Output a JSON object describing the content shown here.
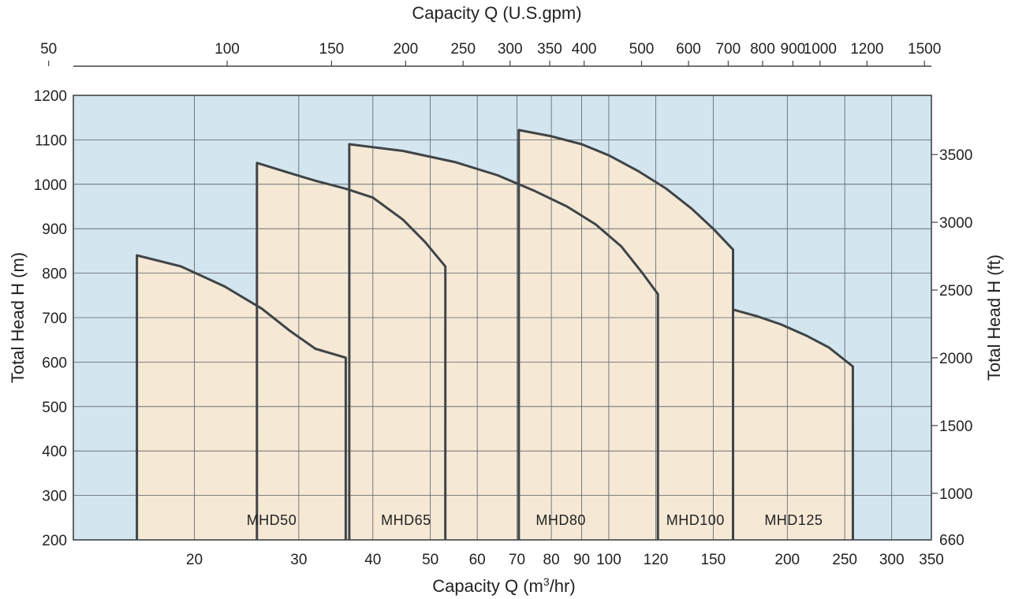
{
  "chart_data": {
    "type": "area",
    "plot_background": "#d3e5ee",
    "region_fill": "#f5e8d5",
    "outline_color": "#3f4447",
    "grid_color": "#5a6066",
    "xscale": "log",
    "xlim": [
      12.5,
      350
    ],
    "ylim": [
      200,
      1200
    ],
    "xlabel": "Capacity  Q (m³/hr)",
    "ylabel": "Total Head  H (m)",
    "x2label": "Capacity  Q (U.S.gpm)",
    "y2label": "Total Head  H (ft)",
    "x_ticks": [
      20,
      30,
      40,
      50,
      60,
      70,
      80,
      90,
      100,
      120,
      150,
      200,
      250,
      300,
      350
    ],
    "y_ticks": [
      200,
      300,
      400,
      500,
      600,
      700,
      800,
      900,
      1000,
      1100,
      1200
    ],
    "x2_ticks": [
      50,
      100,
      150,
      200,
      250,
      300,
      350,
      400,
      500,
      600,
      700,
      800,
      900,
      1000,
      1200,
      1500
    ],
    "y2_ticks": [
      660,
      1000,
      1500,
      2000,
      2500,
      3000,
      3500
    ],
    "series": [
      {
        "name": "MHD50",
        "x_label_at": 27,
        "head_curve": [
          [
            16,
            840
          ],
          [
            19,
            815
          ],
          [
            22.5,
            770
          ],
          [
            26,
            720
          ],
          [
            29,
            670
          ],
          [
            32,
            630
          ],
          [
            36,
            610
          ]
        ]
      },
      {
        "name": "MHD65",
        "x_label_at": 45.5,
        "head_curve": [
          [
            25.5,
            1048
          ],
          [
            29,
            1025
          ],
          [
            32,
            1008
          ],
          [
            36,
            990
          ],
          [
            40,
            970
          ],
          [
            45,
            920
          ],
          [
            49,
            870
          ],
          [
            53,
            815
          ]
        ]
      },
      {
        "name": "MHD80",
        "x_label_at": 83,
        "head_curve": [
          [
            36.5,
            1090
          ],
          [
            45,
            1075
          ],
          [
            55,
            1050
          ],
          [
            65,
            1020
          ],
          [
            75,
            985
          ],
          [
            85,
            950
          ],
          [
            95,
            910
          ],
          [
            105,
            860
          ],
          [
            114,
            800
          ],
          [
            121,
            753
          ]
        ]
      },
      {
        "name": "MHD100",
        "x_label_at": 140,
        "head_curve": [
          [
            70.5,
            1122
          ],
          [
            80,
            1108
          ],
          [
            90,
            1090
          ],
          [
            100,
            1065
          ],
          [
            112,
            1030
          ],
          [
            125,
            990
          ],
          [
            138,
            945
          ],
          [
            150,
            900
          ],
          [
            162,
            853
          ]
        ]
      },
      {
        "name": "MHD125",
        "x_label_at": 205,
        "head_curve": [
          [
            162,
            718
          ],
          [
            178,
            703
          ],
          [
            195,
            685
          ],
          [
            215,
            660
          ],
          [
            235,
            633
          ],
          [
            258,
            590
          ]
        ]
      }
    ]
  }
}
